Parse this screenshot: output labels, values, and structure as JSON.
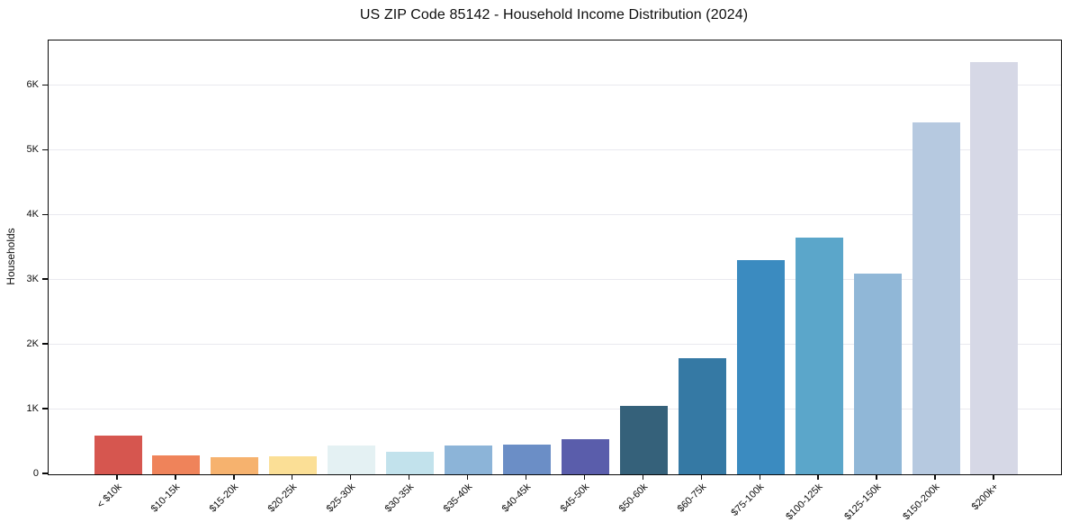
{
  "chart_data": {
    "type": "bar",
    "title": "US ZIP Code 85142 - Household Income Distribution (2024)",
    "xlabel": "",
    "ylabel": "Households",
    "categories": [
      "< $10k",
      "$10-15k",
      "$15-20k",
      "$20-25k",
      "$25-30k",
      "$30-35k",
      "$35-40k",
      "$40-45k",
      "$45-50k",
      "$50-60k",
      "$60-75k",
      "$75-100k",
      "$100-125k",
      "$125-150k",
      "$150-200k",
      "$200k+"
    ],
    "values": [
      600,
      295,
      260,
      285,
      440,
      345,
      450,
      465,
      540,
      1050,
      1800,
      3310,
      3660,
      3100,
      5440,
      6360
    ],
    "bar_colors": [
      "#d6564f",
      "#ef835a",
      "#f6b26e",
      "#fbdf96",
      "#e4f1f3",
      "#c2e2ec",
      "#8cb4d8",
      "#6b8ec6",
      "#5a5dab",
      "#35617a",
      "#3579a4",
      "#3b8bc0",
      "#5ba6ca",
      "#90b7d7",
      "#b6c9e0",
      "#d6d8e6"
    ],
    "ylim": [
      0,
      6700
    ],
    "yticks": [
      {
        "value": 0,
        "label": "0"
      },
      {
        "value": 1000,
        "label": "1K"
      },
      {
        "value": 2000,
        "label": "2K"
      },
      {
        "value": 3000,
        "label": "3K"
      },
      {
        "value": 4000,
        "label": "4K"
      },
      {
        "value": 5000,
        "label": "5K"
      },
      {
        "value": 6000,
        "label": "6K"
      }
    ],
    "grid": "horizontal",
    "legend": "none",
    "background_color": "#ffffff",
    "grid_color": "#e9e9ef",
    "spine_color": "#0a0a0a"
  }
}
